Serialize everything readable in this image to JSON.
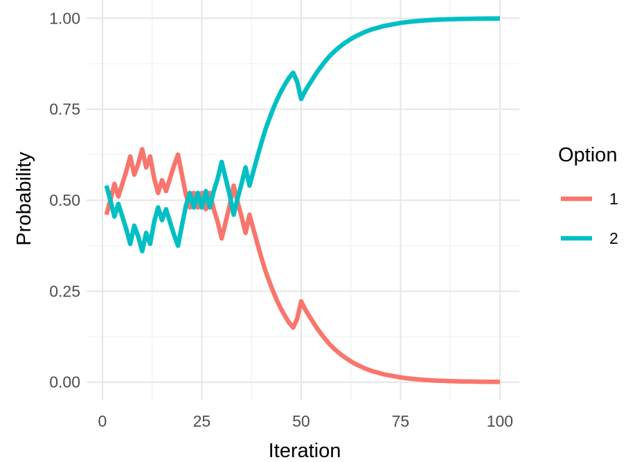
{
  "chart_data": {
    "type": "line",
    "xlabel": "Iteration",
    "ylabel": "Probability",
    "xlim": [
      1,
      100
    ],
    "ylim": [
      0,
      1
    ],
    "x_ticks": [
      0,
      25,
      50,
      75,
      100
    ],
    "x_tick_labels": [
      "0",
      "25",
      "50",
      "75",
      "100"
    ],
    "y_ticks": [
      0,
      0.25,
      0.5,
      0.75,
      1
    ],
    "y_tick_labels": [
      "0.00",
      "0.25",
      "0.50",
      "0.75",
      "1.00"
    ],
    "grid": true,
    "legend": {
      "title": "Option",
      "position": "right",
      "entries": [
        "1",
        "2"
      ]
    },
    "series": [
      {
        "name": "1",
        "color": "#F8766D",
        "x": [
          1,
          2,
          3,
          4,
          5,
          6,
          7,
          8,
          9,
          10,
          11,
          12,
          13,
          14,
          15,
          16,
          17,
          18,
          19,
          20,
          21,
          22,
          23,
          24,
          25,
          26,
          27,
          28,
          29,
          30,
          31,
          32,
          33,
          34,
          35,
          36,
          37,
          38,
          39,
          40,
          41,
          42,
          43,
          44,
          45,
          46,
          47,
          48,
          49,
          50,
          51,
          52,
          53,
          54,
          55,
          56,
          57,
          58,
          59,
          60,
          61,
          62,
          63,
          64,
          65,
          66,
          67,
          68,
          69,
          70,
          71,
          72,
          73,
          74,
          75,
          76,
          77,
          78,
          79,
          80,
          81,
          82,
          83,
          84,
          85,
          86,
          87,
          88,
          89,
          90,
          91,
          92,
          93,
          94,
          95,
          96,
          97,
          98,
          99,
          100
        ],
        "values": [
          0.46,
          0.5,
          0.545,
          0.51,
          0.545,
          0.58,
          0.62,
          0.57,
          0.6,
          0.64,
          0.59,
          0.62,
          0.56,
          0.52,
          0.555,
          0.525,
          0.56,
          0.595,
          0.625,
          0.57,
          0.515,
          0.48,
          0.52,
          0.48,
          0.52,
          0.475,
          0.52,
          0.475,
          0.44,
          0.395,
          0.44,
          0.485,
          0.54,
          0.495,
          0.455,
          0.41,
          0.46,
          0.42,
          0.38,
          0.342,
          0.306,
          0.276,
          0.248,
          0.222,
          0.2,
          0.18,
          0.163,
          0.15,
          0.175,
          0.222,
          0.2,
          0.182,
          0.165,
          0.148,
          0.133,
          0.119,
          0.106,
          0.095,
          0.085,
          0.076,
          0.068,
          0.061,
          0.054,
          0.048,
          0.043,
          0.038,
          0.034,
          0.03,
          0.027,
          0.024,
          0.021,
          0.019,
          0.017,
          0.015,
          0.013,
          0.0115,
          0.0102,
          0.009,
          0.008,
          0.007,
          0.0062,
          0.0055,
          0.0049,
          0.0043,
          0.0038,
          0.0034,
          0.003,
          0.0027,
          0.0024,
          0.0021,
          0.0019,
          0.0017,
          0.0015,
          0.0013,
          0.0012,
          0.0011,
          0.001,
          0.0009,
          0.0008,
          0.0007
        ]
      },
      {
        "name": "2",
        "color": "#00BFC4",
        "x": [
          1,
          2,
          3,
          4,
          5,
          6,
          7,
          8,
          9,
          10,
          11,
          12,
          13,
          14,
          15,
          16,
          17,
          18,
          19,
          20,
          21,
          22,
          23,
          24,
          25,
          26,
          27,
          28,
          29,
          30,
          31,
          32,
          33,
          34,
          35,
          36,
          37,
          38,
          39,
          40,
          41,
          42,
          43,
          44,
          45,
          46,
          47,
          48,
          49,
          50,
          51,
          52,
          53,
          54,
          55,
          56,
          57,
          58,
          59,
          60,
          61,
          62,
          63,
          64,
          65,
          66,
          67,
          68,
          69,
          70,
          71,
          72,
          73,
          74,
          75,
          76,
          77,
          78,
          79,
          80,
          81,
          82,
          83,
          84,
          85,
          86,
          87,
          88,
          89,
          90,
          91,
          92,
          93,
          94,
          95,
          96,
          97,
          98,
          99,
          100
        ],
        "values": [
          0.54,
          0.5,
          0.455,
          0.49,
          0.455,
          0.42,
          0.38,
          0.43,
          0.4,
          0.36,
          0.41,
          0.38,
          0.44,
          0.48,
          0.445,
          0.475,
          0.44,
          0.405,
          0.375,
          0.43,
          0.485,
          0.52,
          0.48,
          0.52,
          0.48,
          0.525,
          0.48,
          0.525,
          0.56,
          0.605,
          0.56,
          0.515,
          0.46,
          0.505,
          0.545,
          0.59,
          0.54,
          0.58,
          0.62,
          0.658,
          0.694,
          0.724,
          0.752,
          0.778,
          0.8,
          0.82,
          0.837,
          0.85,
          0.825,
          0.778,
          0.8,
          0.818,
          0.835,
          0.852,
          0.867,
          0.881,
          0.894,
          0.905,
          0.915,
          0.924,
          0.932,
          0.939,
          0.946,
          0.952,
          0.957,
          0.962,
          0.966,
          0.97,
          0.973,
          0.976,
          0.979,
          0.981,
          0.983,
          0.985,
          0.987,
          0.9885,
          0.9898,
          0.991,
          0.992,
          0.993,
          0.9938,
          0.9945,
          0.9951,
          0.9957,
          0.9962,
          0.9966,
          0.997,
          0.9973,
          0.9976,
          0.9979,
          0.9981,
          0.9983,
          0.9985,
          0.9987,
          0.9988,
          0.9989,
          0.999,
          0.9991,
          0.9992,
          0.9993
        ]
      }
    ]
  }
}
